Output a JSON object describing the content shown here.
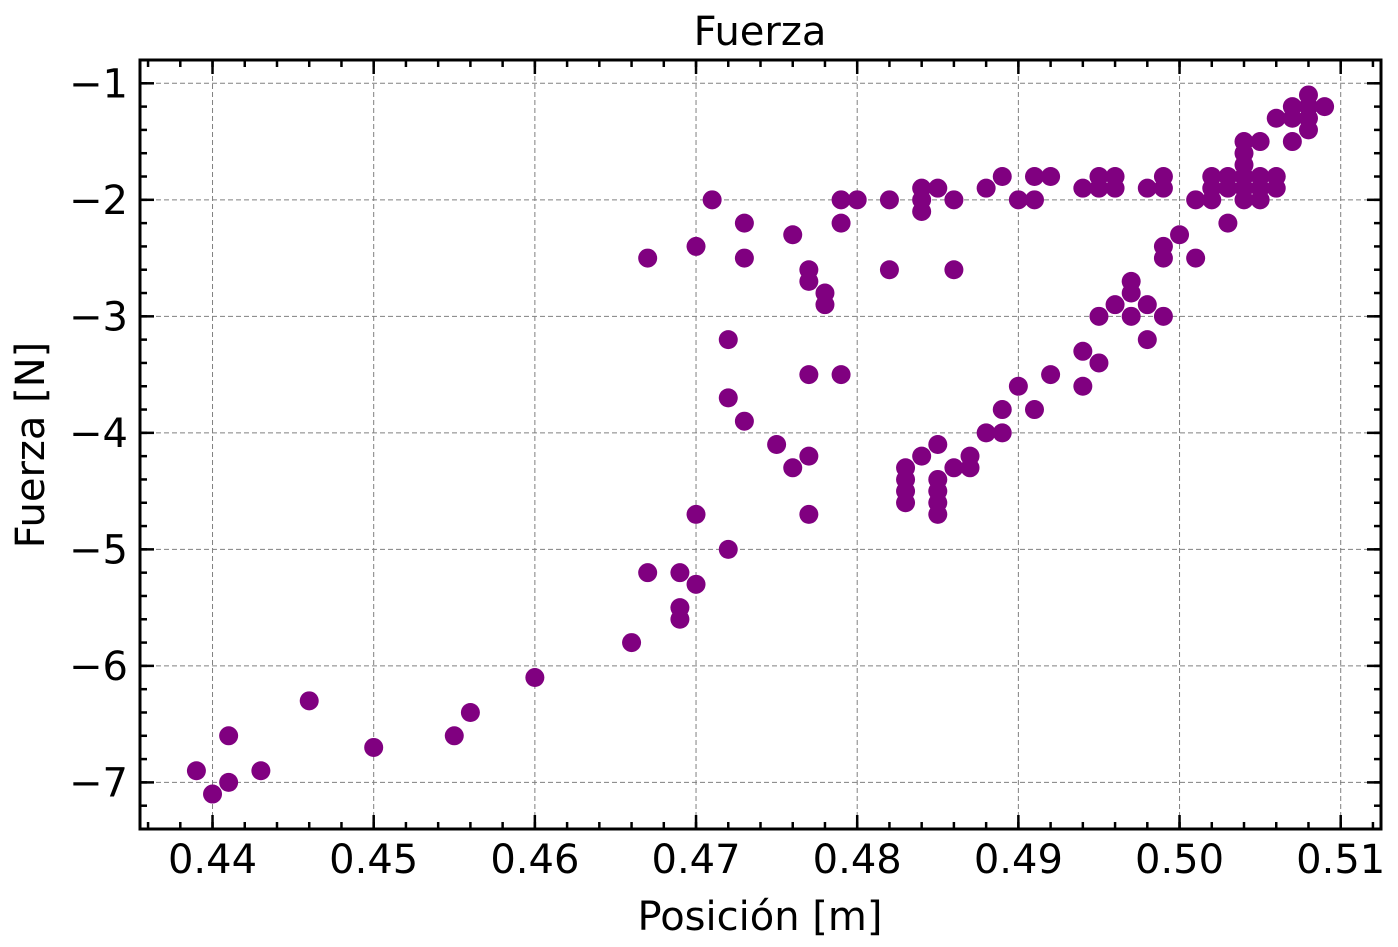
{
  "chart_data": {
    "type": "scatter",
    "title": "Fuerza",
    "xlabel": "Posición [m]",
    "ylabel": "Fuerza [N]",
    "xlim": [
      0.4355,
      0.5125
    ],
    "ylim": [
      -7.4,
      -0.8
    ],
    "xticks": [
      0.44,
      0.45,
      0.46,
      0.47,
      0.48,
      0.49,
      0.5,
      0.51
    ],
    "xtick_labels": [
      "0.44",
      "0.45",
      "0.46",
      "0.47",
      "0.48",
      "0.49",
      "0.50",
      "0.51"
    ],
    "yticks": [
      -1,
      -2,
      -3,
      -4,
      -5,
      -6,
      -7
    ],
    "ytick_labels": [
      "−1",
      "−2",
      "−3",
      "−4",
      "−5",
      "−6",
      "−7"
    ],
    "grid": true,
    "marker_color": "#800080",
    "points": [
      [
        0.439,
        -6.9
      ],
      [
        0.44,
        -7.1
      ],
      [
        0.441,
        -6.6
      ],
      [
        0.441,
        -7.0
      ],
      [
        0.443,
        -6.9
      ],
      [
        0.446,
        -6.3
      ],
      [
        0.45,
        -6.7
      ],
      [
        0.455,
        -6.6
      ],
      [
        0.456,
        -6.4
      ],
      [
        0.46,
        -6.1
      ],
      [
        0.466,
        -5.8
      ],
      [
        0.467,
        -5.2
      ],
      [
        0.469,
        -5.2
      ],
      [
        0.469,
        -5.5
      ],
      [
        0.469,
        -5.6
      ],
      [
        0.47,
        -5.3
      ],
      [
        0.47,
        -4.7
      ],
      [
        0.472,
        -5.0
      ],
      [
        0.472,
        -3.7
      ],
      [
        0.472,
        -3.2
      ],
      [
        0.473,
        -3.9
      ],
      [
        0.475,
        -4.1
      ],
      [
        0.476,
        -4.3
      ],
      [
        0.477,
        -4.2
      ],
      [
        0.477,
        -4.7
      ],
      [
        0.477,
        -3.5
      ],
      [
        0.479,
        -3.5
      ],
      [
        0.467,
        -2.5
      ],
      [
        0.47,
        -2.4
      ],
      [
        0.471,
        -2.0
      ],
      [
        0.473,
        -2.2
      ],
      [
        0.473,
        -2.5
      ],
      [
        0.476,
        -2.3
      ],
      [
        0.477,
        -2.6
      ],
      [
        0.477,
        -2.7
      ],
      [
        0.478,
        -2.8
      ],
      [
        0.478,
        -2.9
      ],
      [
        0.479,
        -2.2
      ],
      [
        0.479,
        -2.0
      ],
      [
        0.48,
        -2.0
      ],
      [
        0.482,
        -2.0
      ],
      [
        0.482,
        -2.6
      ],
      [
        0.484,
        -2.1
      ],
      [
        0.484,
        -2.0
      ],
      [
        0.484,
        -1.9
      ],
      [
        0.485,
        -1.9
      ],
      [
        0.486,
        -2.0
      ],
      [
        0.486,
        -2.6
      ],
      [
        0.488,
        -1.9
      ],
      [
        0.489,
        -1.8
      ],
      [
        0.49,
        -2.0
      ],
      [
        0.491,
        -2.0
      ],
      [
        0.491,
        -1.8
      ],
      [
        0.492,
        -1.8
      ],
      [
        0.494,
        -1.9
      ],
      [
        0.495,
        -1.9
      ],
      [
        0.495,
        -1.8
      ],
      [
        0.496,
        -1.8
      ],
      [
        0.496,
        -1.9
      ],
      [
        0.498,
        -1.9
      ],
      [
        0.499,
        -1.9
      ],
      [
        0.499,
        -1.8
      ],
      [
        0.501,
        -2.0
      ],
      [
        0.502,
        -2.0
      ],
      [
        0.502,
        -1.9
      ],
      [
        0.502,
        -1.8
      ],
      [
        0.503,
        -1.8
      ],
      [
        0.503,
        -1.9
      ],
      [
        0.504,
        -1.8
      ],
      [
        0.504,
        -1.9
      ],
      [
        0.504,
        -2.0
      ],
      [
        0.504,
        -1.5
      ],
      [
        0.504,
        -1.6
      ],
      [
        0.504,
        -1.7
      ],
      [
        0.505,
        -1.5
      ],
      [
        0.505,
        -1.8
      ],
      [
        0.505,
        -1.9
      ],
      [
        0.505,
        -2.0
      ],
      [
        0.506,
        -1.8
      ],
      [
        0.506,
        -1.9
      ],
      [
        0.506,
        -1.3
      ],
      [
        0.507,
        -1.2
      ],
      [
        0.507,
        -1.3
      ],
      [
        0.507,
        -1.5
      ],
      [
        0.508,
        -1.1
      ],
      [
        0.508,
        -1.2
      ],
      [
        0.508,
        -1.3
      ],
      [
        0.508,
        -1.4
      ],
      [
        0.509,
        -1.2
      ],
      [
        0.483,
        -4.3
      ],
      [
        0.483,
        -4.4
      ],
      [
        0.483,
        -4.5
      ],
      [
        0.483,
        -4.6
      ],
      [
        0.484,
        -4.2
      ],
      [
        0.485,
        -4.1
      ],
      [
        0.485,
        -4.4
      ],
      [
        0.485,
        -4.5
      ],
      [
        0.485,
        -4.6
      ],
      [
        0.485,
        -4.7
      ],
      [
        0.486,
        -4.3
      ],
      [
        0.487,
        -4.2
      ],
      [
        0.487,
        -4.3
      ],
      [
        0.488,
        -4.0
      ],
      [
        0.489,
        -4.0
      ],
      [
        0.489,
        -3.8
      ],
      [
        0.49,
        -3.6
      ],
      [
        0.491,
        -3.8
      ],
      [
        0.492,
        -3.5
      ],
      [
        0.494,
        -3.3
      ],
      [
        0.494,
        -3.6
      ],
      [
        0.495,
        -3.0
      ],
      [
        0.495,
        -3.4
      ],
      [
        0.496,
        -2.9
      ],
      [
        0.497,
        -2.7
      ],
      [
        0.497,
        -2.8
      ],
      [
        0.497,
        -3.0
      ],
      [
        0.498,
        -2.9
      ],
      [
        0.498,
        -3.2
      ],
      [
        0.499,
        -3.0
      ],
      [
        0.499,
        -2.4
      ],
      [
        0.499,
        -2.5
      ],
      [
        0.5,
        -2.3
      ],
      [
        0.501,
        -2.5
      ],
      [
        0.503,
        -2.2
      ]
    ]
  }
}
